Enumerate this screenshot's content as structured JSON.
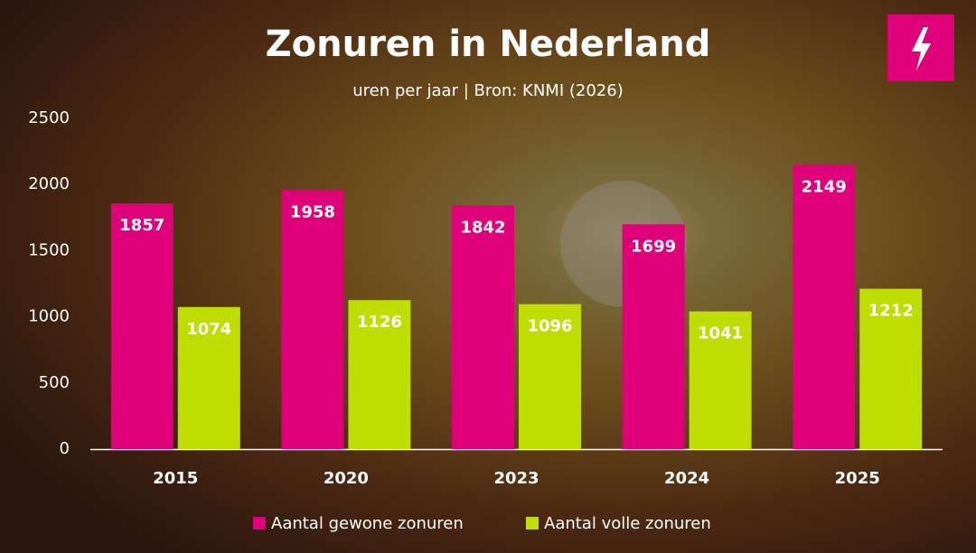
{
  "chart_data": {
    "type": "bar",
    "title": "Zonuren in Nederland",
    "subtitle": "uren per jaar | Bron: KNMI (2026)",
    "categories": [
      "2015",
      "2020",
      "2023",
      "2024",
      "2025"
    ],
    "series": [
      {
        "name": "Aantal gewone zonuren",
        "color": "#e0007a",
        "values": [
          1857,
          1958,
          1842,
          1699,
          2149
        ]
      },
      {
        "name": "Aantal volle zonuren",
        "color": "#bedd00",
        "values": [
          1074,
          1126,
          1096,
          1041,
          1212
        ]
      }
    ],
    "ylim": [
      0,
      2500
    ],
    "yticks": [
      0,
      500,
      1000,
      1500,
      2000,
      2500
    ],
    "grid": false,
    "legend": "bottom"
  }
}
